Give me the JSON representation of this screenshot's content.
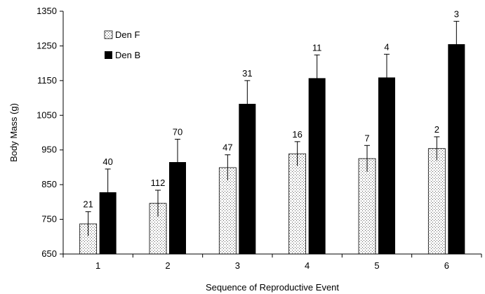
{
  "chart_data": {
    "type": "bar",
    "categories": [
      "1",
      "2",
      "3",
      "4",
      "5",
      "6"
    ],
    "series": [
      {
        "name": "Den F",
        "fill": "dotted",
        "values": [
          737,
          796,
          899,
          939,
          925,
          954
        ],
        "error": [
          35,
          38,
          37,
          35,
          38,
          34
        ],
        "counts": [
          "21",
          "112",
          "47",
          "16",
          "7",
          "2"
        ]
      },
      {
        "name": "Den B",
        "fill": "#000000",
        "values": [
          828,
          915,
          1083,
          1157,
          1159,
          1255
        ],
        "error": [
          67,
          66,
          67,
          67,
          67,
          66
        ],
        "counts": [
          "40",
          "70",
          "31",
          "11",
          "4",
          "3"
        ]
      }
    ],
    "xlabel": "Sequence of Reproductive Event",
    "ylabel": "Body Mass (g)",
    "ylim": [
      650,
      1350
    ],
    "yticks": [
      "650",
      "750",
      "850",
      "950",
      "1050",
      "1150",
      "1250",
      "1350"
    ],
    "grid": false,
    "legend_position": "top-left"
  }
}
